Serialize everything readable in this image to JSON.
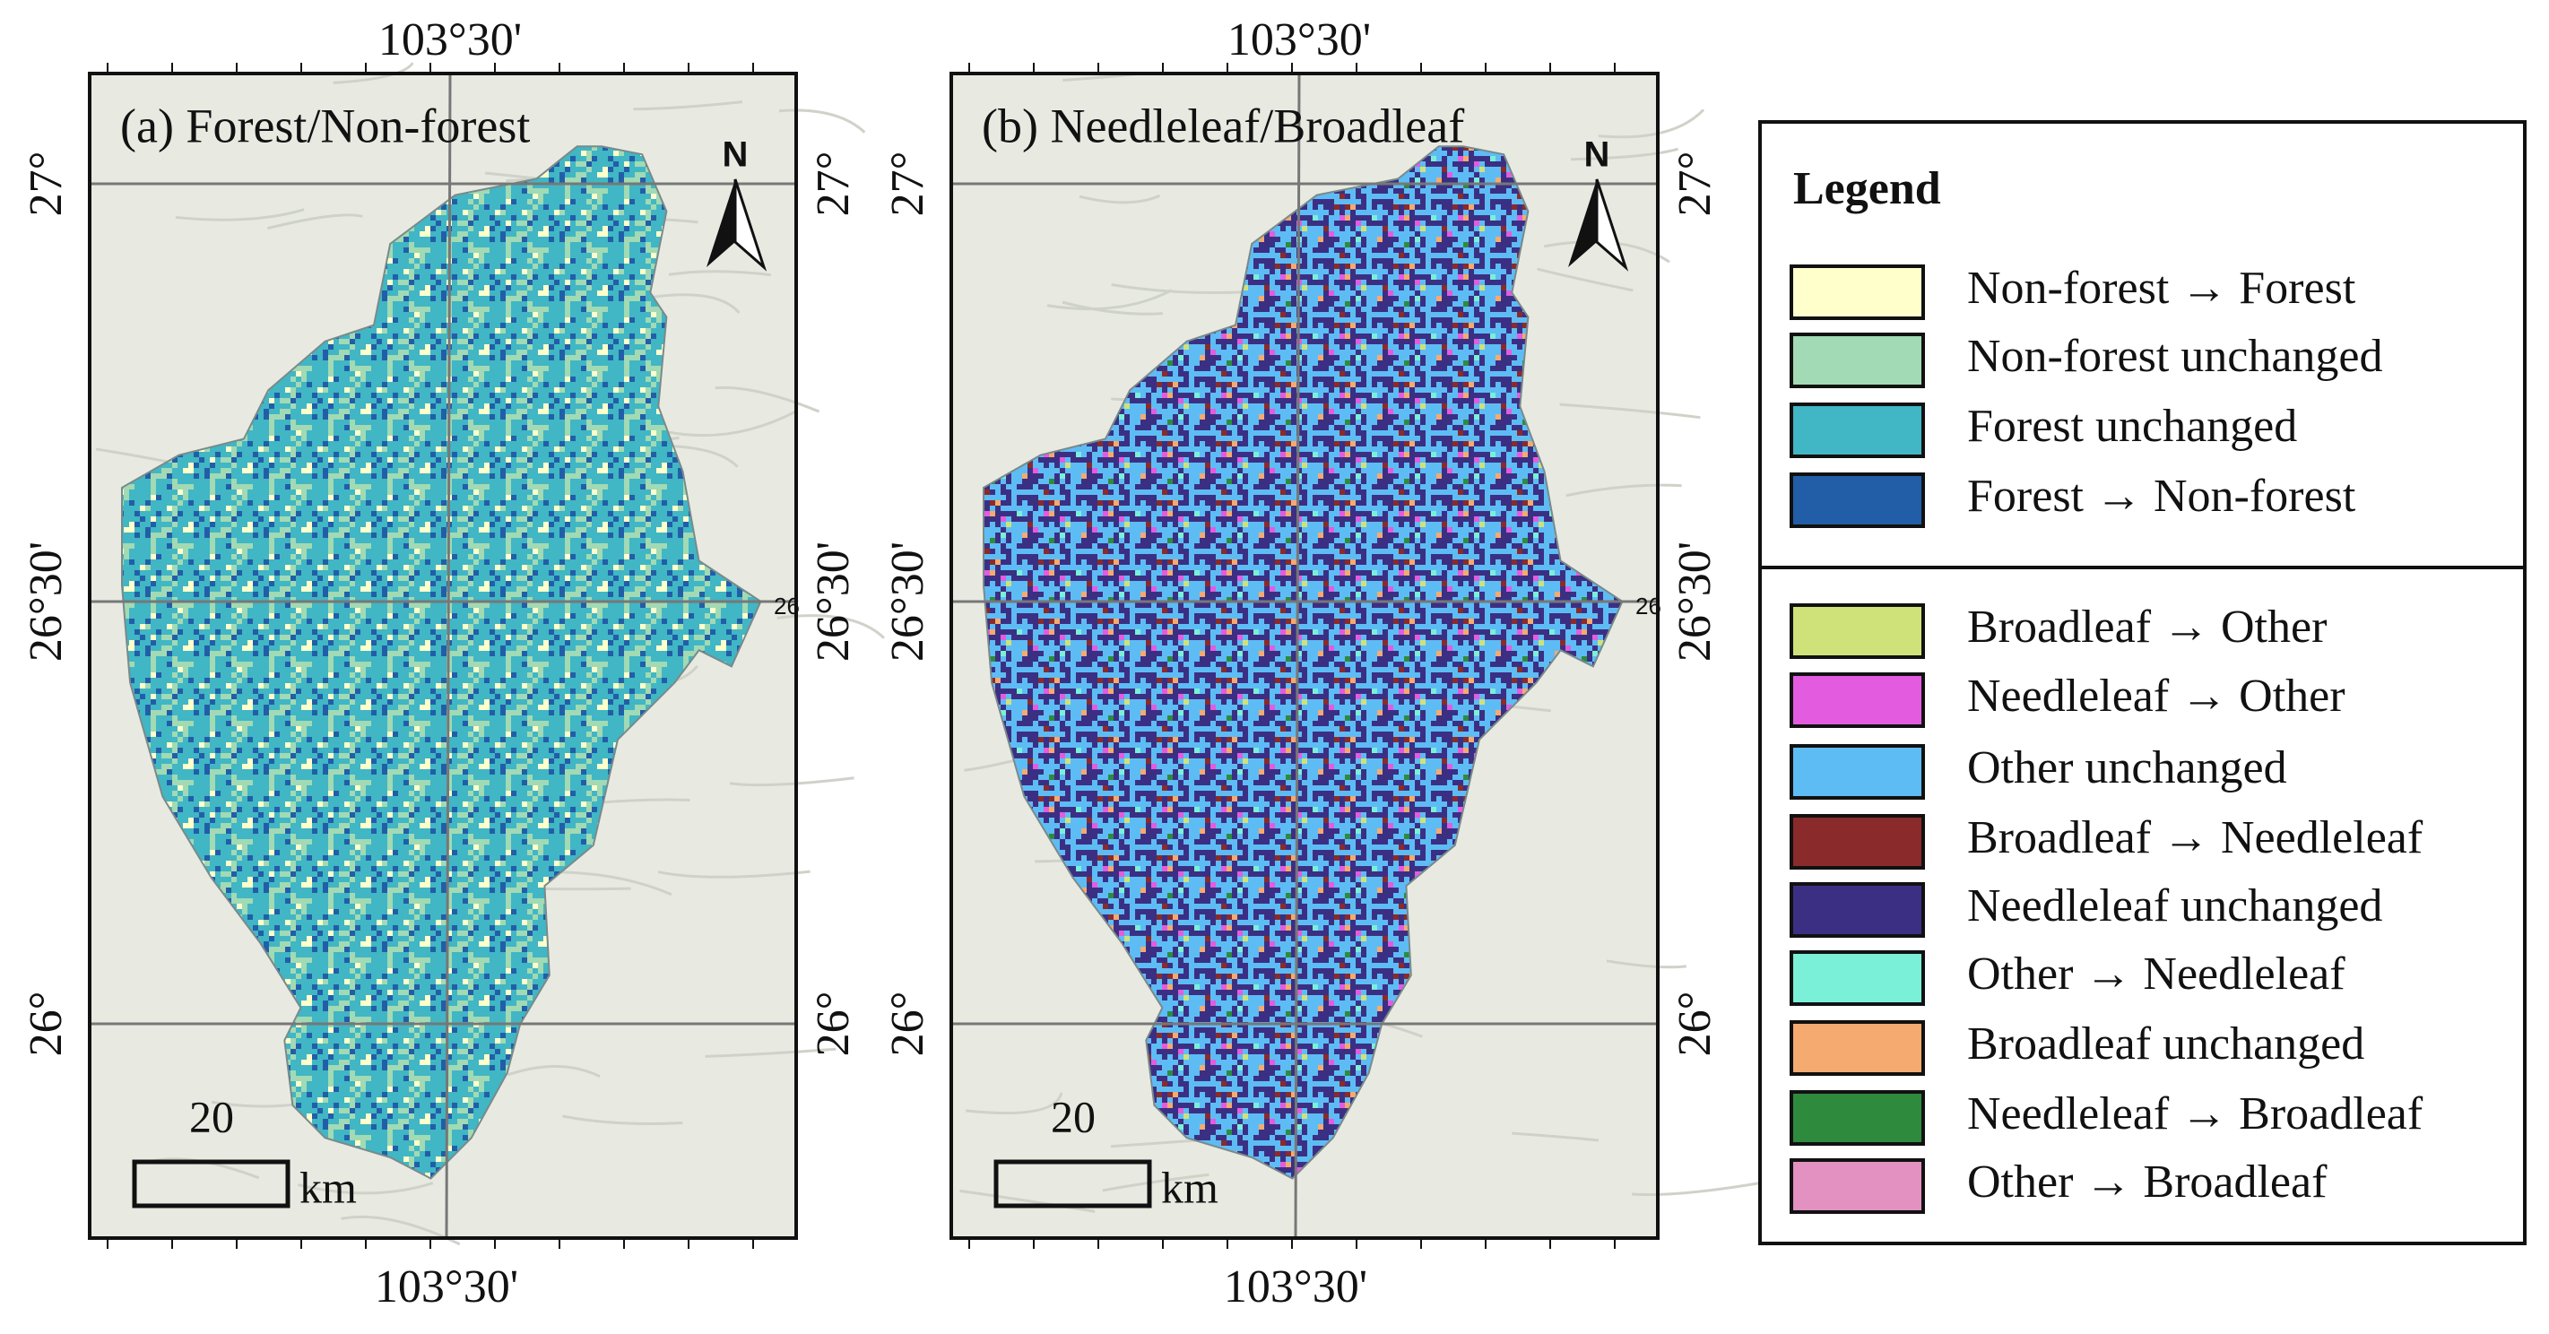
{
  "panels": [
    {
      "title": "(a) Forest/Non-forest",
      "north": "N",
      "top_lon": "103°30'",
      "bottom_lon": "103°30'",
      "lat_labels": [
        "27°",
        "26°30'",
        "26°"
      ],
      "edge_label": "26",
      "scale_value": "20",
      "scale_unit": "km"
    },
    {
      "title": "(b) Needleleaf/Broadleaf",
      "north": "N",
      "top_lon": "103°30'",
      "bottom_lon": "103°30'",
      "lat_labels": [
        "27°",
        "26°30'",
        "26°"
      ],
      "edge_label": "26",
      "scale_value": "20",
      "scale_unit": "km"
    }
  ],
  "legend": {
    "title": "Legend",
    "groups": [
      [
        {
          "label": "Non-forest → Forest",
          "color": "#ffffcc"
        },
        {
          "label": "Non-forest unchanged",
          "color": "#a1dab4"
        },
        {
          "label": "Forest unchanged",
          "color": "#41b6c4"
        },
        {
          "label": "Forest → Non-forest",
          "color": "#225ea8"
        }
      ],
      [
        {
          "label": "Broadleaf → Other",
          "color": "#cfe27a"
        },
        {
          "label": "Needleleaf → Other",
          "color": "#e35ce0"
        },
        {
          "label": "Other unchanged",
          "color": "#5ebcf5"
        },
        {
          "label": "Broadleaf → Needleleaf",
          "color": "#8b2a2a"
        },
        {
          "label": "Needleleaf unchanged",
          "color": "#3b2f84"
        },
        {
          "label": "Other → Needleleaf",
          "color": "#7af0d8"
        },
        {
          "label": "Broadleaf unchanged",
          "color": "#f5aa70"
        },
        {
          "label": "Needleleaf → Broadleaf",
          "color": "#2e8b3e"
        },
        {
          "label": "Other → Broadleaf",
          "color": "#e291c0"
        }
      ]
    ]
  }
}
